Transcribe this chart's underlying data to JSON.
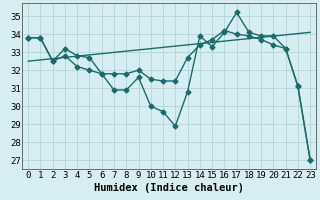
{
  "xlabel": "Humidex (Indice chaleur)",
  "xlim": [
    -0.5,
    23.5
  ],
  "ylim": [
    26.5,
    35.7
  ],
  "yticks": [
    27,
    28,
    29,
    30,
    31,
    32,
    33,
    34,
    35
  ],
  "xticks": [
    0,
    1,
    2,
    3,
    4,
    5,
    6,
    7,
    8,
    9,
    10,
    11,
    12,
    13,
    14,
    15,
    16,
    17,
    18,
    19,
    20,
    21,
    22,
    23
  ],
  "bg_color": "#d6eef2",
  "grid_color": "#b0d4d8",
  "line_color": "#1a6b6b",
  "curve1": [
    33.8,
    33.8,
    32.5,
    33.2,
    32.8,
    32.7,
    31.8,
    30.9,
    30.9,
    31.6,
    30.0,
    29.7,
    28.9,
    30.8,
    33.9,
    33.3,
    34.1,
    35.2,
    34.1,
    33.9,
    33.9,
    33.2,
    31.1,
    27.0
  ],
  "curve2": [
    33.8,
    33.8,
    32.5,
    32.8,
    32.2,
    32.0,
    31.8,
    31.8,
    31.8,
    32.0,
    31.5,
    31.4,
    31.4,
    32.7,
    33.4,
    33.7,
    34.2,
    34.0,
    33.9,
    33.7,
    33.4,
    33.2,
    31.1,
    27.0
  ],
  "trend_x": [
    0,
    23
  ],
  "trend_y": [
    32.5,
    34.1
  ],
  "markersize": 2.5,
  "linewidth": 1.0,
  "tick_fontsize": 6.5,
  "xlabel_fontsize": 7.5
}
